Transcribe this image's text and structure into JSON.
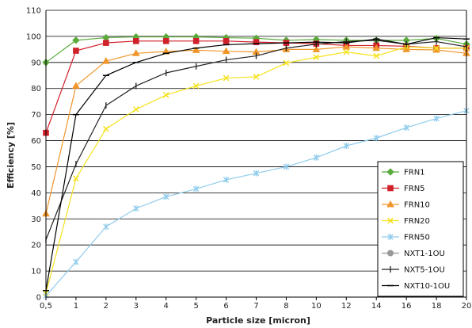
{
  "chart_data": {
    "type": "line",
    "xlabel": "Particle size [micron]",
    "ylabel": "Efficiency  [%]",
    "categories": [
      "0,5",
      "1",
      "2",
      "3",
      "4",
      "5",
      "6",
      "7",
      "8",
      "10",
      "12",
      "14",
      "16",
      "18",
      "20"
    ],
    "ylim": [
      0,
      110
    ],
    "yticks": [
      0,
      10,
      20,
      30,
      40,
      50,
      60,
      70,
      80,
      90,
      100,
      110
    ],
    "grid": "horizontal",
    "legend_placement": "bottom-right",
    "series": [
      {
        "name": "FRN1",
        "color": "#5aaa3c",
        "marker": "diamond",
        "values": [
          90,
          98.5,
          99.5,
          99.8,
          99.8,
          99.8,
          99.5,
          99.3,
          98.5,
          98.8,
          98.5,
          98.5,
          98.5,
          99.2,
          97
        ]
      },
      {
        "name": "FRN5",
        "color": "#d0202a",
        "marker": "square",
        "values": [
          63,
          94.5,
          97.5,
          98.2,
          98.2,
          98.2,
          98.2,
          97.8,
          97.5,
          97.2,
          96.5,
          96.5,
          96.2,
          95.5,
          95.5
        ]
      },
      {
        "name": "FRN10",
        "color": "#f0962a",
        "marker": "triangle",
        "values": [
          32,
          81,
          90.5,
          93.5,
          94.2,
          94.7,
          94.3,
          94,
          95,
          95,
          96,
          95.5,
          95,
          94.8,
          93.5
        ]
      },
      {
        "name": "FRN20",
        "color": "#f5e21e",
        "marker": "x",
        "values": [
          1.5,
          45.5,
          64.5,
          72,
          77.5,
          81,
          84,
          84.5,
          89.8,
          92,
          94,
          92.5,
          96,
          95.5,
          95.5
        ]
      },
      {
        "name": "FRN50",
        "color": "#90ccec",
        "marker": "star",
        "values": [
          0.5,
          13.5,
          27,
          34,
          38.5,
          41.5,
          45,
          47.5,
          50,
          53.5,
          58,
          61,
          65,
          68.5,
          71.5
        ]
      },
      {
        "name": "NXT1-1OU",
        "color": "#999999",
        "marker": "circle",
        "values": [
          null,
          null,
          null,
          null,
          null,
          null,
          null,
          null,
          null,
          null,
          null,
          null,
          null,
          null,
          null
        ]
      },
      {
        "name": "NXT5-1OU",
        "color": "#222222",
        "marker": "plus",
        "values": [
          22,
          51,
          73.5,
          81,
          86,
          88.5,
          91,
          92.5,
          95.5,
          97,
          98,
          98.5,
          97,
          98,
          96
        ]
      },
      {
        "name": "NXT10-1OU",
        "color": "#000000",
        "marker": "dash",
        "values": [
          2.5,
          70,
          85,
          90,
          93.5,
          95.5,
          96.8,
          97.2,
          97.5,
          97.8,
          97.5,
          99,
          97,
          99.5,
          99
        ]
      }
    ]
  }
}
